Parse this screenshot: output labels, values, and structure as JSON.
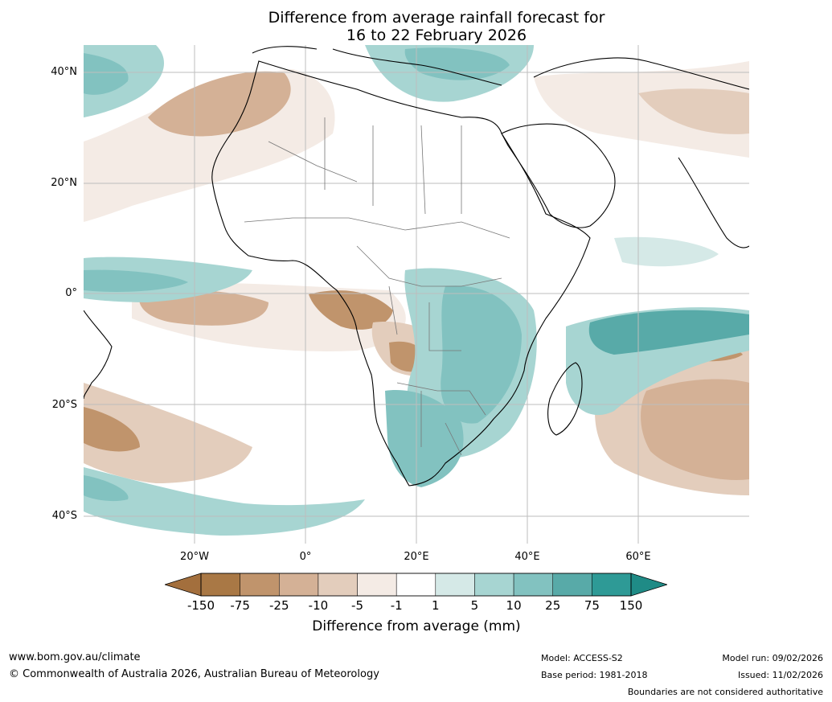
{
  "title": {
    "line1": "Difference from average rainfall forecast for",
    "line2": "16 to 22 February 2026"
  },
  "map": {
    "region": "Africa",
    "lat_labels": [
      "40°N",
      "20°N",
      "0°",
      "20°S",
      "40°S"
    ],
    "lon_labels": [
      "20°W",
      "0°",
      "20°E",
      "40°E",
      "60°E"
    ],
    "features": {
      "wet_anomalies": [
        "central-east-africa",
        "southern-africa",
        "south-west-indian-ocean",
        "mediterranean",
        "north-atlantic",
        "south-atlantic"
      ],
      "dry_anomalies": [
        "angola",
        "gulf-of-guinea",
        "south-indian-ocean",
        "north-east-atlantic",
        "west-asia"
      ]
    }
  },
  "colorbar": {
    "labels": [
      "-150",
      "-75",
      "-25",
      "-10",
      "-5",
      "-1",
      "1",
      "5",
      "10",
      "25",
      "75",
      "150"
    ],
    "colors": [
      "#a97845",
      "#c0946c",
      "#d4b196",
      "#e3cdbc",
      "#f4ebe5",
      "#ffffff",
      "#d5e9e7",
      "#a7d5d2",
      "#82c2c0",
      "#58aaa8",
      "#2e9a96"
    ],
    "under_color": "#a36f3d",
    "over_color": "#1f8b86",
    "title": "Difference from average (mm)"
  },
  "footer": {
    "website": "www.bom.gov.au/climate",
    "copyright": "© Commonwealth of Australia 2026, Australian Bureau of Meteorology",
    "model": "Model: ACCESS-S2",
    "base_period": "Base period: 1981-2018",
    "model_run": "Model run: 09/02/2026",
    "issued": "Issued: 11/02/2026",
    "disclaimer": "Boundaries are not considered authoritative"
  }
}
